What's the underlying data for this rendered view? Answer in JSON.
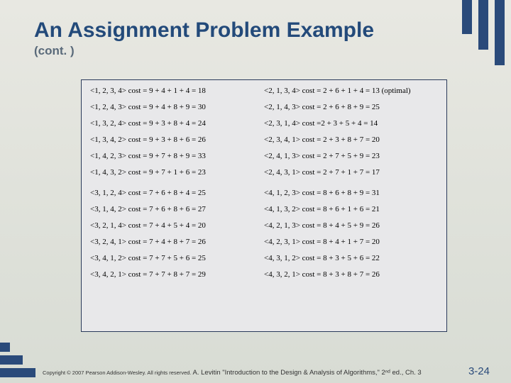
{
  "title": "An Assignment Problem Example",
  "subtitle": "(cont. )",
  "colors": {
    "title_color": "#234a7a",
    "subtitle_color": "#5a6a7a",
    "accent_stripe": "#2a4a7a",
    "box_border": "#2a3a5a",
    "box_bg": "#e8e8ea",
    "slide_bg_top": "#e8e8e2",
    "slide_bg_bottom": "#d8dcd4",
    "pagenum_color": "#2a4a7a"
  },
  "rows_block1": [
    {
      "left": "<1, 2, 3, 4>  cost = 9 + 4 + 1 + 4 = 18",
      "right": "<2, 1, 3, 4> cost = 2 + 6 + 1 + 4 = 13 (optimal)"
    },
    {
      "left": "<1, 2, 4, 3> cost = 9 + 4 + 8 +  9 = 30",
      "right": "<2, 1, 4, 3> cost = 2 + 6 + 8 + 9 = 25"
    },
    {
      "left": "<1, 3, 2, 4> cost = 9 + 3 + 8 + 4 = 24",
      "right": "<2, 3, 1, 4> cost =2 + 3 + 5 + 4 = 14"
    },
    {
      "left": "<1, 3, 4, 2> cost = 9 + 3 + 8 + 6 = 26",
      "right": "<2, 3, 4, 1> cost = 2 + 3 + 8 + 7 = 20"
    },
    {
      "left": "<1, 4, 2, 3> cost = 9 + 7 + 8 + 9 = 33",
      "right": "<2, 4, 1, 3> cost = 2 + 7 + 5 + 9 = 23"
    },
    {
      "left": "<1, 4, 3, 2> cost = 9 + 7 + 1 + 6 = 23",
      "right": "<2, 4, 3, 1> cost = 2 + 7 + 1 + 7 = 17"
    }
  ],
  "rows_block2": [
    {
      "left": "<3, 1, 2, 4> cost = 7 + 6 + 8 + 4 = 25",
      "right": "<4, 1, 2, 3> cost = 8 + 6 + 8 + 9 = 31"
    },
    {
      "left": "<3, 1, 4, 2> cost = 7 + 6 + 8 + 6 = 27",
      "right": "<4, 1, 3, 2> cost = 8 + 6 + 1 + 6 = 21"
    },
    {
      "left": "<3, 2, 1, 4> cost = 7 + 4 + 5 + 4 = 20",
      "right": "<4, 2, 1, 3> cost = 8 + 4 + 5 + 9 = 26"
    },
    {
      "left": "<3, 2, 4, 1> cost = 7 + 4 + 8 + 7 = 26",
      "right": "<4, 2, 3, 1> cost = 8 + 4 + 1 + 7 = 20"
    },
    {
      "left": "<3, 4, 1, 2> cost = 7 + 7 + 5 + 6 = 25",
      "right": "<4, 3, 1, 2> cost = 8 + 3 + 5 + 6 = 22"
    },
    {
      "left": "<3, 4, 2, 1> cost = 7 + 7 + 8 + 7 = 29",
      "right": "<4, 3, 2, 1> cost = 8 + 3 + 8 + 7 = 26"
    }
  ],
  "footer": {
    "copyright": "Copyright © 2007 Pearson Addison-Wesley. All rights reserved.",
    "citation": "A. Levitin \"Introduction to the Design & Analysis of Algorithms,\" 2ⁿᵈ ed., Ch. 3",
    "pagenum": "3-24"
  }
}
